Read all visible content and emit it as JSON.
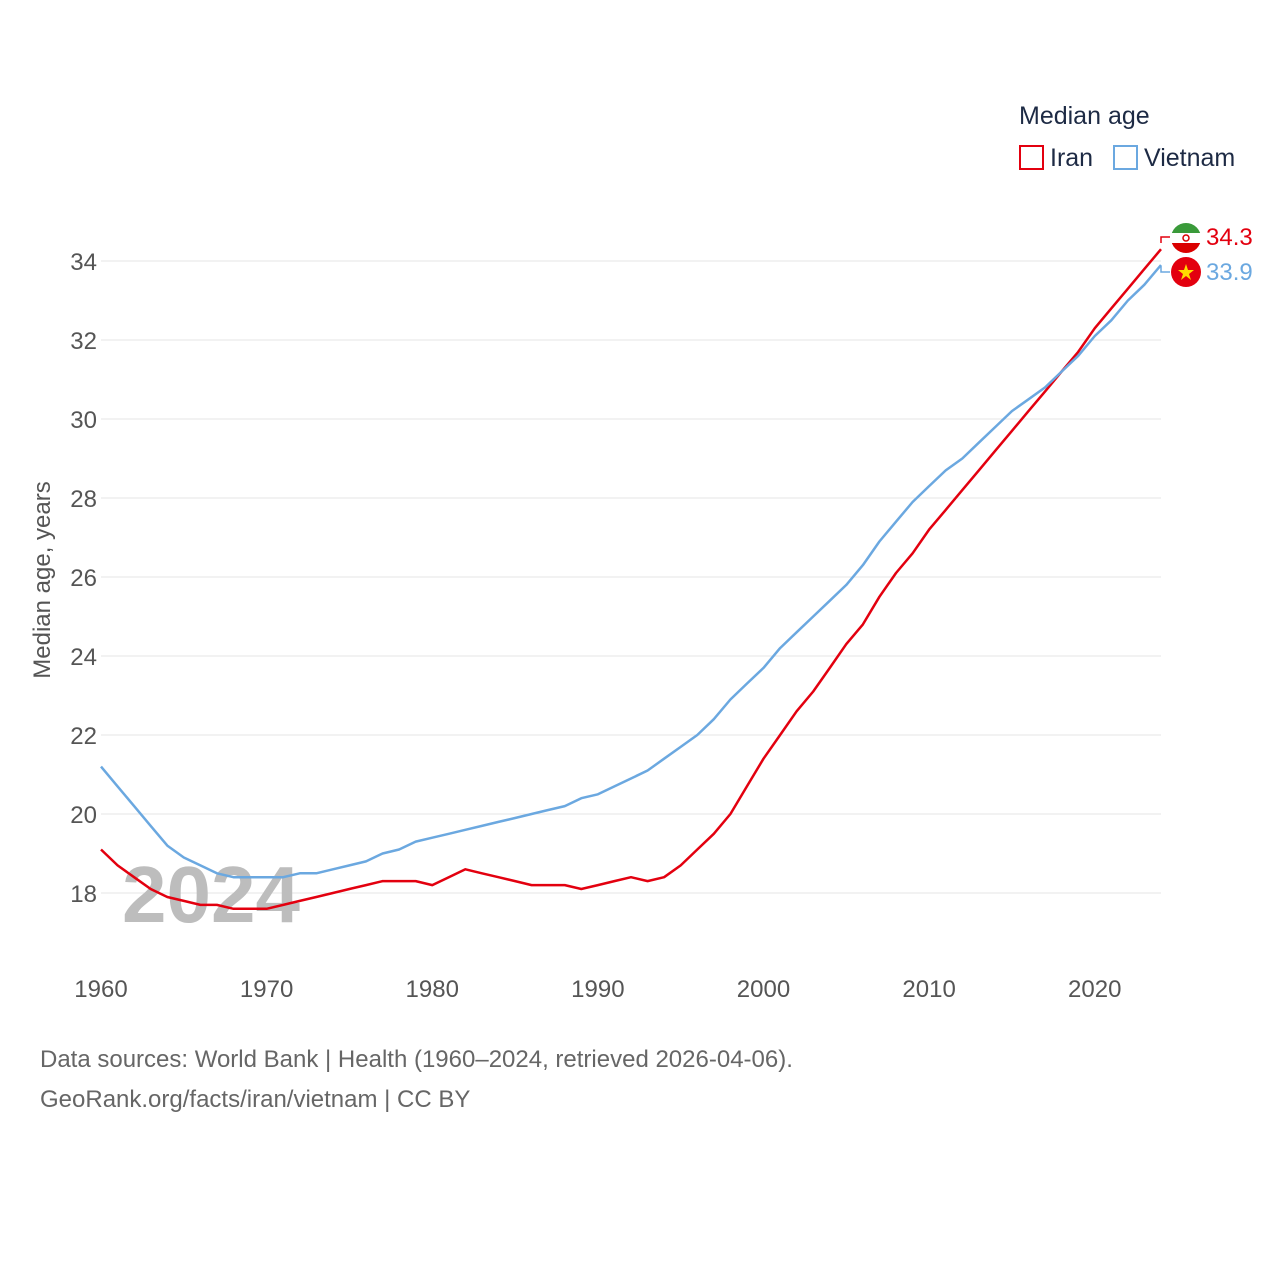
{
  "chart_data": {
    "type": "line",
    "legend_title": "Median age",
    "ylabel": "Median age, years",
    "xlabel": "",
    "xlim": [
      1960,
      2024
    ],
    "ylim": [
      16.3,
      34.8
    ],
    "x_ticks": [
      1960,
      1970,
      1980,
      1990,
      2000,
      2010,
      2020
    ],
    "y_ticks": [
      18,
      20,
      22,
      24,
      26,
      28,
      30,
      32,
      34
    ],
    "year_watermark": "2024",
    "series": [
      {
        "name": "Iran",
        "color": "#e3000f",
        "end_label": "34.3",
        "flag_icon": "iran-flag-icon",
        "x": [
          1960,
          1961,
          1962,
          1963,
          1964,
          1965,
          1966,
          1967,
          1968,
          1969,
          1970,
          1971,
          1972,
          1973,
          1974,
          1975,
          1976,
          1977,
          1978,
          1979,
          1980,
          1981,
          1982,
          1983,
          1984,
          1985,
          1986,
          1987,
          1988,
          1989,
          1990,
          1991,
          1992,
          1993,
          1994,
          1995,
          1996,
          1997,
          1998,
          1999,
          2000,
          2001,
          2002,
          2003,
          2004,
          2005,
          2006,
          2007,
          2008,
          2009,
          2010,
          2011,
          2012,
          2013,
          2014,
          2015,
          2016,
          2017,
          2018,
          2019,
          2020,
          2021,
          2022,
          2023,
          2024
        ],
        "values": [
          19.1,
          18.7,
          18.4,
          18.1,
          17.9,
          17.8,
          17.7,
          17.7,
          17.6,
          17.6,
          17.6,
          17.7,
          17.8,
          17.9,
          18.0,
          18.1,
          18.2,
          18.3,
          18.3,
          18.3,
          18.2,
          18.4,
          18.6,
          18.5,
          18.4,
          18.3,
          18.2,
          18.2,
          18.2,
          18.1,
          18.2,
          18.3,
          18.4,
          18.3,
          18.4,
          18.7,
          19.1,
          19.5,
          20.0,
          20.7,
          21.4,
          22.0,
          22.6,
          23.1,
          23.7,
          24.3,
          24.8,
          25.5,
          26.1,
          26.6,
          27.2,
          27.7,
          28.2,
          28.7,
          29.2,
          29.7,
          30.2,
          30.7,
          31.2,
          31.7,
          32.3,
          32.8,
          33.3,
          33.8,
          34.3
        ]
      },
      {
        "name": "Vietnam",
        "color": "#6ba8e0",
        "end_label": "33.9",
        "flag_icon": "vietnam-flag-icon",
        "x": [
          1960,
          1961,
          1962,
          1963,
          1964,
          1965,
          1966,
          1967,
          1968,
          1969,
          1970,
          1971,
          1972,
          1973,
          1974,
          1975,
          1976,
          1977,
          1978,
          1979,
          1980,
          1981,
          1982,
          1983,
          1984,
          1985,
          1986,
          1987,
          1988,
          1989,
          1990,
          1991,
          1992,
          1993,
          1994,
          1995,
          1996,
          1997,
          1998,
          1999,
          2000,
          2001,
          2002,
          2003,
          2004,
          2005,
          2006,
          2007,
          2008,
          2009,
          2010,
          2011,
          2012,
          2013,
          2014,
          2015,
          2016,
          2017,
          2018,
          2019,
          2020,
          2021,
          2022,
          2023,
          2024
        ],
        "values": [
          21.2,
          20.7,
          20.2,
          19.7,
          19.2,
          18.9,
          18.7,
          18.5,
          18.4,
          18.4,
          18.4,
          18.4,
          18.5,
          18.5,
          18.6,
          18.7,
          18.8,
          19.0,
          19.1,
          19.3,
          19.4,
          19.5,
          19.6,
          19.7,
          19.8,
          19.9,
          20.0,
          20.1,
          20.2,
          20.4,
          20.5,
          20.7,
          20.9,
          21.1,
          21.4,
          21.7,
          22.0,
          22.4,
          22.9,
          23.3,
          23.7,
          24.2,
          24.6,
          25.0,
          25.4,
          25.8,
          26.3,
          26.9,
          27.4,
          27.9,
          28.3,
          28.7,
          29.0,
          29.4,
          29.8,
          30.2,
          30.5,
          30.8,
          31.2,
          31.6,
          32.1,
          32.5,
          33.0,
          33.4,
          33.9
        ]
      }
    ]
  },
  "source": {
    "line1": "Data sources: World Bank | Health (1960–2024, retrieved 2026-04-06).",
    "line2": "GeoRank.org/facts/iran/vietnam | CC BY"
  }
}
